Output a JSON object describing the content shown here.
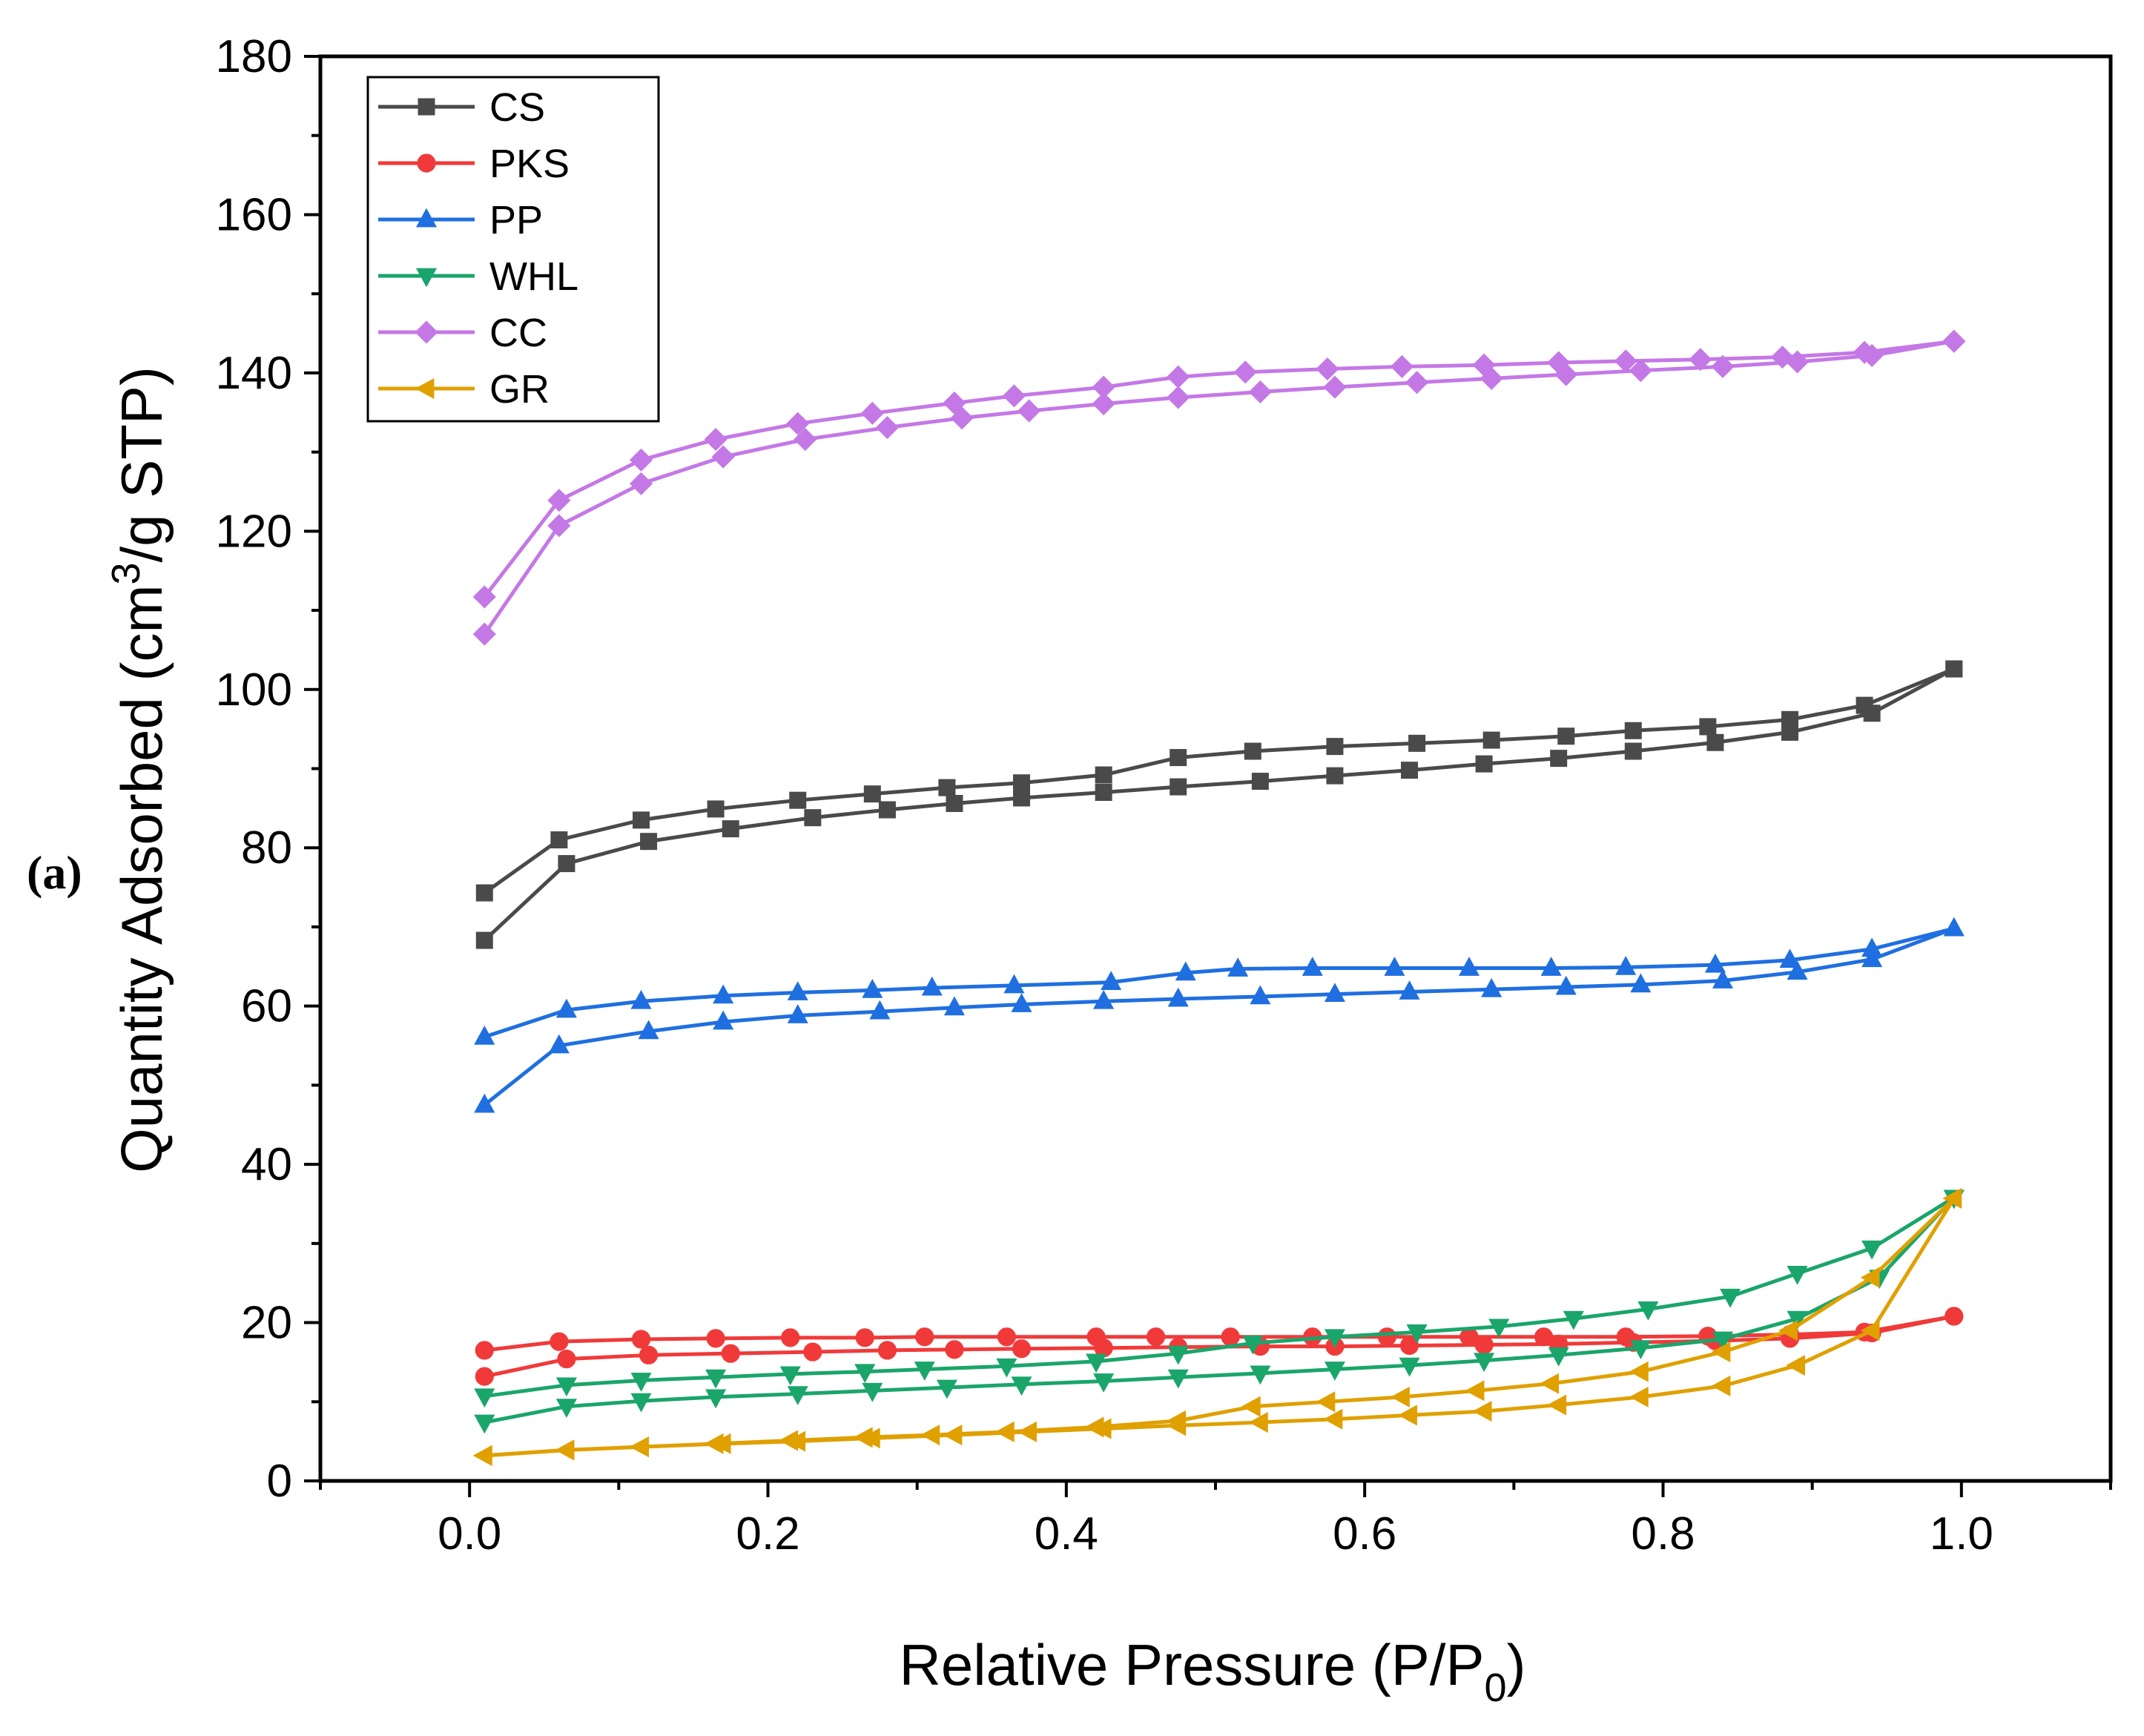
{
  "panel_label": "(a)",
  "chart_data": {
    "type": "line",
    "title": "",
    "xlabel": {
      "main": "Relative Pressure (P/P",
      "sub": "0",
      "close": ")"
    },
    "ylabel": {
      "pre": "Quantity Adsorbed (cm",
      "sup": "3",
      "post": "/g STP)"
    },
    "xlim": [
      -0.1,
      1.1
    ],
    "ylim": [
      0,
      180
    ],
    "xticks": [
      0.0,
      0.2,
      0.4,
      0.6,
      0.8,
      1.0
    ],
    "xtick_labels": [
      "0.0",
      "0.2",
      "0.4",
      "0.6",
      "0.8",
      "1.0"
    ],
    "yticks": [
      0,
      20,
      40,
      60,
      80,
      100,
      120,
      140,
      160,
      180
    ],
    "ytick_labels": [
      "0",
      "20",
      "40",
      "60",
      "80",
      "100",
      "120",
      "140",
      "160",
      "180"
    ],
    "legend_position": "top-left",
    "series": [
      {
        "name": "CS",
        "color": "#4a4a4a",
        "marker": "square",
        "adsorption": [
          [
            0.01,
            68.3
          ],
          [
            0.065,
            78
          ],
          [
            0.12,
            80.8
          ],
          [
            0.175,
            82.4
          ],
          [
            0.23,
            83.8
          ],
          [
            0.28,
            84.8
          ],
          [
            0.325,
            85.6
          ],
          [
            0.37,
            86.3
          ],
          [
            0.425,
            87.0
          ],
          [
            0.475,
            87.7
          ],
          [
            0.53,
            88.4
          ],
          [
            0.58,
            89.1
          ],
          [
            0.63,
            89.8
          ],
          [
            0.68,
            90.6
          ],
          [
            0.73,
            91.3
          ],
          [
            0.78,
            92.2
          ],
          [
            0.835,
            93.3
          ],
          [
            0.885,
            94.6
          ],
          [
            0.94,
            97.0
          ],
          [
            0.995,
            102.6
          ]
        ],
        "desorption": [
          [
            0.995,
            102.6
          ],
          [
            0.935,
            98.0
          ],
          [
            0.885,
            96.2
          ],
          [
            0.83,
            95.3
          ],
          [
            0.78,
            94.8
          ],
          [
            0.735,
            94.1
          ],
          [
            0.685,
            93.6
          ],
          [
            0.635,
            93.2
          ],
          [
            0.58,
            92.8
          ],
          [
            0.525,
            92.2
          ],
          [
            0.475,
            91.4
          ],
          [
            0.425,
            89.2
          ],
          [
            0.37,
            88.2
          ],
          [
            0.32,
            87.6
          ],
          [
            0.27,
            86.8
          ],
          [
            0.22,
            86.0
          ],
          [
            0.165,
            84.9
          ],
          [
            0.115,
            83.5
          ],
          [
            0.06,
            81.0
          ],
          [
            0.01,
            74.3
          ]
        ]
      },
      {
        "name": "PKS",
        "color": "#f03a3a",
        "marker": "circle",
        "adsorption": [
          [
            0.01,
            13.2
          ],
          [
            0.065,
            15.4
          ],
          [
            0.12,
            15.9
          ],
          [
            0.175,
            16.1
          ],
          [
            0.23,
            16.3
          ],
          [
            0.28,
            16.5
          ],
          [
            0.325,
            16.6
          ],
          [
            0.37,
            16.7
          ],
          [
            0.425,
            16.8
          ],
          [
            0.475,
            16.9
          ],
          [
            0.53,
            17.0
          ],
          [
            0.58,
            17.0
          ],
          [
            0.63,
            17.1
          ],
          [
            0.68,
            17.2
          ],
          [
            0.73,
            17.3
          ],
          [
            0.78,
            17.5
          ],
          [
            0.835,
            17.7
          ],
          [
            0.885,
            18.0
          ],
          [
            0.94,
            18.7
          ],
          [
            0.995,
            20.8
          ]
        ],
        "desorption": [
          [
            0.995,
            20.8
          ],
          [
            0.935,
            18.8
          ],
          [
            0.885,
            18.5
          ],
          [
            0.83,
            18.3
          ],
          [
            0.775,
            18.2
          ],
          [
            0.72,
            18.2
          ],
          [
            0.67,
            18.2
          ],
          [
            0.615,
            18.2
          ],
          [
            0.565,
            18.2
          ],
          [
            0.51,
            18.2
          ],
          [
            0.46,
            18.2
          ],
          [
            0.42,
            18.2
          ],
          [
            0.36,
            18.2
          ],
          [
            0.305,
            18.2
          ],
          [
            0.265,
            18.1
          ],
          [
            0.215,
            18.1
          ],
          [
            0.165,
            18.0
          ],
          [
            0.115,
            17.9
          ],
          [
            0.06,
            17.6
          ],
          [
            0.01,
            16.5
          ]
        ]
      },
      {
        "name": "PP",
        "color": "#1f6fe0",
        "marker": "triangle-up",
        "adsorption": [
          [
            0.01,
            47.5
          ],
          [
            0.06,
            55.0
          ],
          [
            0.12,
            56.8
          ],
          [
            0.17,
            58.0
          ],
          [
            0.22,
            58.8
          ],
          [
            0.275,
            59.3
          ],
          [
            0.325,
            59.8
          ],
          [
            0.37,
            60.2
          ],
          [
            0.425,
            60.6
          ],
          [
            0.475,
            60.9
          ],
          [
            0.53,
            61.2
          ],
          [
            0.58,
            61.5
          ],
          [
            0.63,
            61.8
          ],
          [
            0.685,
            62.1
          ],
          [
            0.735,
            62.4
          ],
          [
            0.785,
            62.7
          ],
          [
            0.84,
            63.2
          ],
          [
            0.89,
            64.3
          ],
          [
            0.94,
            65.9
          ],
          [
            0.995,
            69.8
          ]
        ],
        "desorption": [
          [
            0.995,
            69.8
          ],
          [
            0.94,
            67.2
          ],
          [
            0.885,
            65.8
          ],
          [
            0.835,
            65.2
          ],
          [
            0.775,
            64.9
          ],
          [
            0.725,
            64.8
          ],
          [
            0.67,
            64.8
          ],
          [
            0.62,
            64.8
          ],
          [
            0.565,
            64.8
          ],
          [
            0.515,
            64.7
          ],
          [
            0.48,
            64.2
          ],
          [
            0.43,
            63.0
          ],
          [
            0.365,
            62.6
          ],
          [
            0.31,
            62.3
          ],
          [
            0.27,
            62.0
          ],
          [
            0.22,
            61.7
          ],
          [
            0.17,
            61.3
          ],
          [
            0.115,
            60.6
          ],
          [
            0.065,
            59.5
          ],
          [
            0.01,
            56.1
          ]
        ]
      },
      {
        "name": "WHL",
        "color": "#1aa56b",
        "marker": "triangle-down",
        "adsorption": [
          [
            0.01,
            7.4
          ],
          [
            0.065,
            9.4
          ],
          [
            0.115,
            10.1
          ],
          [
            0.165,
            10.6
          ],
          [
            0.22,
            11.0
          ],
          [
            0.27,
            11.4
          ],
          [
            0.32,
            11.8
          ],
          [
            0.37,
            12.2
          ],
          [
            0.425,
            12.6
          ],
          [
            0.475,
            13.1
          ],
          [
            0.53,
            13.6
          ],
          [
            0.58,
            14.1
          ],
          [
            0.63,
            14.6
          ],
          [
            0.68,
            15.2
          ],
          [
            0.73,
            15.9
          ],
          [
            0.785,
            16.8
          ],
          [
            0.84,
            17.9
          ],
          [
            0.89,
            20.5
          ],
          [
            0.945,
            25.7
          ],
          [
            0.995,
            35.8
          ]
        ],
        "desorption": [
          [
            0.995,
            35.8
          ],
          [
            0.94,
            29.4
          ],
          [
            0.89,
            26.2
          ],
          [
            0.845,
            23.3
          ],
          [
            0.79,
            21.7
          ],
          [
            0.74,
            20.5
          ],
          [
            0.69,
            19.5
          ],
          [
            0.635,
            18.8
          ],
          [
            0.58,
            18.2
          ],
          [
            0.525,
            17.4
          ],
          [
            0.475,
            16.1
          ],
          [
            0.42,
            15.1
          ],
          [
            0.36,
            14.5
          ],
          [
            0.305,
            14.1
          ],
          [
            0.265,
            13.8
          ],
          [
            0.215,
            13.5
          ],
          [
            0.165,
            13.1
          ],
          [
            0.115,
            12.7
          ],
          [
            0.065,
            12.1
          ],
          [
            0.01,
            10.7
          ]
        ]
      },
      {
        "name": "CC",
        "color": "#c478e6",
        "marker": "diamond",
        "adsorption": [
          [
            0.01,
            107.0
          ],
          [
            0.06,
            120.7
          ],
          [
            0.115,
            126.0
          ],
          [
            0.17,
            129.4
          ],
          [
            0.225,
            131.6
          ],
          [
            0.28,
            133.1
          ],
          [
            0.33,
            134.3
          ],
          [
            0.375,
            135.2
          ],
          [
            0.425,
            136.1
          ],
          [
            0.475,
            136.9
          ],
          [
            0.53,
            137.6
          ],
          [
            0.58,
            138.2
          ],
          [
            0.635,
            138.8
          ],
          [
            0.685,
            139.3
          ],
          [
            0.735,
            139.8
          ],
          [
            0.785,
            140.3
          ],
          [
            0.84,
            140.8
          ],
          [
            0.89,
            141.4
          ],
          [
            0.94,
            142.2
          ],
          [
            0.995,
            144.0
          ]
        ],
        "desorption": [
          [
            0.995,
            144.0
          ],
          [
            0.935,
            142.6
          ],
          [
            0.88,
            142.0
          ],
          [
            0.825,
            141.7
          ],
          [
            0.775,
            141.5
          ],
          [
            0.73,
            141.3
          ],
          [
            0.68,
            141.0
          ],
          [
            0.625,
            140.8
          ],
          [
            0.575,
            140.5
          ],
          [
            0.52,
            140.1
          ],
          [
            0.475,
            139.5
          ],
          [
            0.425,
            138.2
          ],
          [
            0.365,
            137.1
          ],
          [
            0.325,
            136.2
          ],
          [
            0.27,
            134.9
          ],
          [
            0.22,
            133.6
          ],
          [
            0.165,
            131.6
          ],
          [
            0.115,
            129.0
          ],
          [
            0.06,
            123.9
          ],
          [
            0.01,
            111.7
          ]
        ]
      },
      {
        "name": "GR",
        "color": "#e0a000",
        "marker": "triangle-left",
        "adsorption": [
          [
            0.01,
            3.2
          ],
          [
            0.065,
            3.9
          ],
          [
            0.115,
            4.3
          ],
          [
            0.17,
            4.7
          ],
          [
            0.22,
            5.0
          ],
          [
            0.27,
            5.4
          ],
          [
            0.325,
            5.8
          ],
          [
            0.375,
            6.2
          ],
          [
            0.425,
            6.6
          ],
          [
            0.475,
            7.0
          ],
          [
            0.53,
            7.4
          ],
          [
            0.58,
            7.8
          ],
          [
            0.63,
            8.3
          ],
          [
            0.68,
            8.8
          ],
          [
            0.73,
            9.6
          ],
          [
            0.785,
            10.6
          ],
          [
            0.84,
            12.0
          ],
          [
            0.89,
            14.6
          ],
          [
            0.94,
            19.0
          ],
          [
            0.995,
            35.7
          ]
        ],
        "desorption": [
          [
            0.995,
            35.7
          ],
          [
            0.94,
            25.7
          ],
          [
            0.885,
            19.0
          ],
          [
            0.84,
            16.3
          ],
          [
            0.785,
            13.8
          ],
          [
            0.725,
            12.3
          ],
          [
            0.675,
            11.4
          ],
          [
            0.625,
            10.6
          ],
          [
            0.575,
            10.0
          ],
          [
            0.525,
            9.4
          ],
          [
            0.475,
            7.6
          ],
          [
            0.42,
            6.8
          ],
          [
            0.36,
            6.2
          ],
          [
            0.31,
            5.8
          ],
          [
            0.265,
            5.5
          ],
          [
            0.215,
            5.1
          ],
          [
            0.165,
            4.7
          ],
          [
            0.115,
            4.3
          ],
          [
            0.065,
            3.9
          ],
          [
            0.01,
            3.2
          ]
        ]
      }
    ]
  }
}
